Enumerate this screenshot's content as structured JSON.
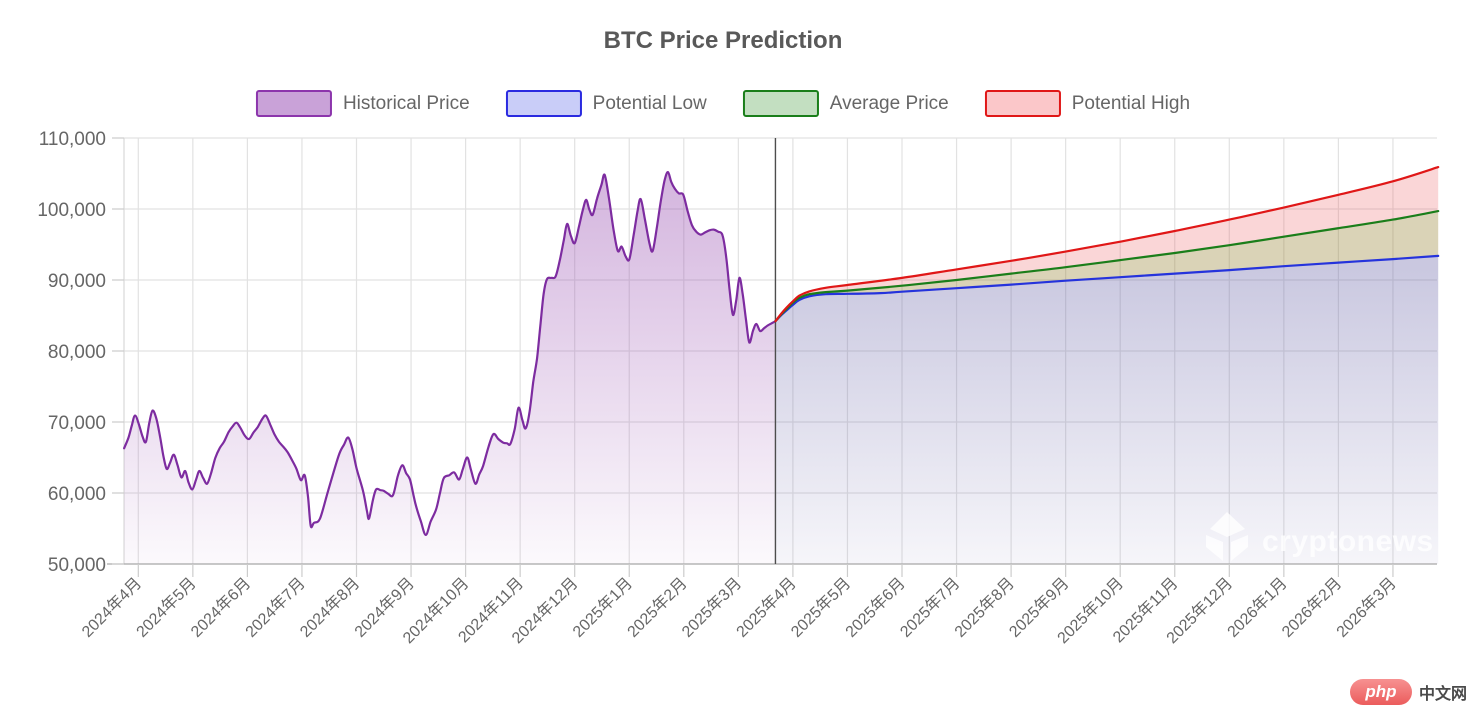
{
  "title": "BTC Price Prediction",
  "watermark": {
    "text": "cryptonews"
  },
  "badge": {
    "brand": "php",
    "suffix": "中文网"
  },
  "legend": [
    {
      "id": "historical",
      "label": "Historical Price",
      "fill": "#c9a2d8",
      "border": "#8c35ac"
    },
    {
      "id": "low",
      "label": "Potential Low",
      "fill": "#c9cdf8",
      "border": "#2a2ae0"
    },
    {
      "id": "avg",
      "label": "Average Price",
      "fill": "#c3dfc1",
      "border": "#1a7e1a"
    },
    {
      "id": "high",
      "label": "Potential High",
      "fill": "#fbc7c9",
      "border": "#e01717"
    }
  ],
  "style": {
    "grid_color": "#e2e2e2",
    "plot_border_color": "#d9d9d9",
    "axis_line_color": "#ababab",
    "tick_color": "#cccccc",
    "label_color": "#666666",
    "title_color": "#595959",
    "divider_color": "#4d4d4d",
    "hist_line": "#7d2ca0",
    "low_line": "#2533dc",
    "avg_line": "#1a7e1a",
    "high_line": "#e01717",
    "hist_fill_top": "rgba(150,75,175,0.42)",
    "hist_fill_bottom": "rgba(150,75,175,0.03)",
    "low_fill_top": "rgba(100,95,165,0.34)",
    "low_fill_bottom": "rgba(100,95,165,0.06)",
    "avg_band_fill": "rgba(150,130,50,0.35)",
    "high_band_fill": "rgba(235,90,95,0.25)",
    "watermark_color": "rgba(255,255,255,0.78)"
  },
  "chart_data": {
    "type": "area",
    "title": "BTC Price Prediction",
    "x_unit_note": "points are [month_index, price_usd]; month_index 0 = 2024年4月 tick, 1 per month",
    "prediction_start": {
      "month_index": 11.68,
      "value": 84200
    },
    "x_axis": {
      "tick_labels": [
        "2024年4月",
        "2024年5月",
        "2024年6月",
        "2024年7月",
        "2024年8月",
        "2024年9月",
        "2024年10月",
        "2024年11月",
        "2024年12月",
        "2025年1月",
        "2025年2月",
        "2025年3月",
        "2025年4月",
        "2025年5月",
        "2025年6月",
        "2025年7月",
        "2025年8月",
        "2025年9月",
        "2025年10月",
        "2025年11月",
        "2025年12月",
        "2026年1月",
        "2026年2月",
        "2026年3月"
      ]
    },
    "y_axis": {
      "min": 50000,
      "max": 110000,
      "tick_step": 10000,
      "tick_labels": [
        "50,000",
        "60,000",
        "70,000",
        "80,000",
        "90,000",
        "100,000",
        "110,000"
      ]
    },
    "grid": true,
    "legend_position": "top",
    "series": [
      {
        "id": "historical",
        "name": "Historical Price",
        "color": "#7d2ca0",
        "points": [
          [
            -0.26,
            66300
          ],
          [
            -0.18,
            67800
          ],
          [
            -0.12,
            69500
          ],
          [
            -0.06,
            70900
          ],
          [
            0.01,
            69700
          ],
          [
            0.08,
            67900
          ],
          [
            0.14,
            67200
          ],
          [
            0.2,
            69800
          ],
          [
            0.26,
            71600
          ],
          [
            0.33,
            70500
          ],
          [
            0.4,
            67900
          ],
          [
            0.46,
            65200
          ],
          [
            0.52,
            63400
          ],
          [
            0.58,
            64200
          ],
          [
            0.65,
            65400
          ],
          [
            0.72,
            63900
          ],
          [
            0.79,
            62200
          ],
          [
            0.86,
            63100
          ],
          [
            0.92,
            61500
          ],
          [
            0.99,
            60500
          ],
          [
            1.06,
            61900
          ],
          [
            1.12,
            63100
          ],
          [
            1.19,
            62100
          ],
          [
            1.26,
            61300
          ],
          [
            1.33,
            62700
          ],
          [
            1.41,
            64900
          ],
          [
            1.49,
            66300
          ],
          [
            1.57,
            67200
          ],
          [
            1.65,
            68500
          ],
          [
            1.73,
            69400
          ],
          [
            1.8,
            69900
          ],
          [
            1.87,
            69200
          ],
          [
            1.95,
            68100
          ],
          [
            2.03,
            67600
          ],
          [
            2.11,
            68500
          ],
          [
            2.19,
            69300
          ],
          [
            2.27,
            70400
          ],
          [
            2.34,
            70900
          ],
          [
            2.42,
            69600
          ],
          [
            2.5,
            68200
          ],
          [
            2.58,
            67200
          ],
          [
            2.66,
            66500
          ],
          [
            2.74,
            65700
          ],
          [
            2.82,
            64600
          ],
          [
            2.9,
            63400
          ],
          [
            2.98,
            61800
          ],
          [
            3.05,
            62500
          ],
          [
            3.11,
            59500
          ],
          [
            3.16,
            55400
          ],
          [
            3.22,
            55800
          ],
          [
            3.33,
            56400
          ],
          [
            3.48,
            60300
          ],
          [
            3.67,
            65200
          ],
          [
            3.77,
            66800
          ],
          [
            3.85,
            67800
          ],
          [
            3.93,
            66000
          ],
          [
            4.0,
            63500
          ],
          [
            4.12,
            60300
          ],
          [
            4.19,
            57500
          ],
          [
            4.23,
            56400
          ],
          [
            4.3,
            59000
          ],
          [
            4.36,
            60500
          ],
          [
            4.44,
            60400
          ],
          [
            4.5,
            60300
          ],
          [
            4.58,
            59900
          ],
          [
            4.67,
            59700
          ],
          [
            4.76,
            62500
          ],
          [
            4.84,
            63900
          ],
          [
            4.91,
            62800
          ],
          [
            4.98,
            61900
          ],
          [
            5.05,
            59500
          ],
          [
            5.09,
            58200
          ],
          [
            5.18,
            56000
          ],
          [
            5.27,
            54100
          ],
          [
            5.36,
            56000
          ],
          [
            5.46,
            57700
          ],
          [
            5.53,
            60000
          ],
          [
            5.6,
            62100
          ],
          [
            5.7,
            62500
          ],
          [
            5.79,
            62900
          ],
          [
            5.88,
            61900
          ],
          [
            5.95,
            63400
          ],
          [
            6.03,
            65000
          ],
          [
            6.1,
            63200
          ],
          [
            6.18,
            61300
          ],
          [
            6.25,
            62600
          ],
          [
            6.32,
            63800
          ],
          [
            6.42,
            66500
          ],
          [
            6.51,
            68300
          ],
          [
            6.6,
            67600
          ],
          [
            6.69,
            67100
          ],
          [
            6.76,
            67000
          ],
          [
            6.82,
            66900
          ],
          [
            6.9,
            69000
          ],
          [
            6.97,
            72000
          ],
          [
            7.04,
            70300
          ],
          [
            7.1,
            69100
          ],
          [
            7.17,
            71300
          ],
          [
            7.24,
            75600
          ],
          [
            7.31,
            79000
          ],
          [
            7.37,
            83500
          ],
          [
            7.43,
            88000
          ],
          [
            7.49,
            90100
          ],
          [
            7.57,
            90300
          ],
          [
            7.65,
            90500
          ],
          [
            7.73,
            92900
          ],
          [
            7.8,
            95600
          ],
          [
            7.86,
            97900
          ],
          [
            7.93,
            96200
          ],
          [
            8.0,
            95200
          ],
          [
            8.08,
            97600
          ],
          [
            8.15,
            99900
          ],
          [
            8.21,
            101300
          ],
          [
            8.27,
            99900
          ],
          [
            8.33,
            99200
          ],
          [
            8.41,
            101500
          ],
          [
            8.49,
            103400
          ],
          [
            8.55,
            104800
          ],
          [
            8.63,
            101400
          ],
          [
            8.71,
            97200
          ],
          [
            8.79,
            94100
          ],
          [
            8.86,
            94700
          ],
          [
            8.93,
            93400
          ],
          [
            9.0,
            92900
          ],
          [
            9.08,
            96300
          ],
          [
            9.15,
            99600
          ],
          [
            9.21,
            101400
          ],
          [
            9.29,
            98400
          ],
          [
            9.37,
            95200
          ],
          [
            9.43,
            94100
          ],
          [
            9.51,
            97600
          ],
          [
            9.58,
            101200
          ],
          [
            9.65,
            104100
          ],
          [
            9.71,
            105200
          ],
          [
            9.77,
            103800
          ],
          [
            9.84,
            102800
          ],
          [
            9.91,
            102200
          ],
          [
            9.99,
            102000
          ],
          [
            10.07,
            99700
          ],
          [
            10.15,
            97700
          ],
          [
            10.23,
            96800
          ],
          [
            10.31,
            96400
          ],
          [
            10.39,
            96700
          ],
          [
            10.47,
            97000
          ],
          [
            10.55,
            97100
          ],
          [
            10.63,
            96800
          ],
          [
            10.71,
            96300
          ],
          [
            10.78,
            93100
          ],
          [
            10.84,
            88600
          ],
          [
            10.9,
            85100
          ],
          [
            10.96,
            87100
          ],
          [
            11.02,
            90300
          ],
          [
            11.08,
            88000
          ],
          [
            11.14,
            84400
          ],
          [
            11.2,
            81200
          ],
          [
            11.27,
            82900
          ],
          [
            11.33,
            83800
          ],
          [
            11.4,
            82800
          ],
          [
            11.47,
            83200
          ],
          [
            11.54,
            83600
          ],
          [
            11.61,
            83900
          ],
          [
            11.68,
            84200
          ]
        ]
      },
      {
        "id": "low",
        "name": "Potential Low",
        "color": "#2533dc",
        "points": [
          [
            11.68,
            84200
          ],
          [
            11.78,
            85000
          ],
          [
            11.88,
            85700
          ],
          [
            12.0,
            86500
          ],
          [
            12.12,
            87200
          ],
          [
            12.3,
            87700
          ],
          [
            12.6,
            88000
          ],
          [
            13.0,
            88050
          ],
          [
            13.6,
            88150
          ],
          [
            14.0,
            88350
          ],
          [
            15.0,
            88850
          ],
          [
            16.0,
            89350
          ],
          [
            17.0,
            89900
          ],
          [
            18.0,
            90400
          ],
          [
            19.0,
            90900
          ],
          [
            20.0,
            91400
          ],
          [
            21.0,
            91950
          ],
          [
            22.0,
            92450
          ],
          [
            23.0,
            92950
          ],
          [
            23.83,
            93400
          ]
        ]
      },
      {
        "id": "avg",
        "name": "Average Price",
        "color": "#1a7e1a",
        "points": [
          [
            11.68,
            84200
          ],
          [
            11.78,
            85100
          ],
          [
            11.88,
            85900
          ],
          [
            12.0,
            86800
          ],
          [
            12.12,
            87500
          ],
          [
            12.3,
            88000
          ],
          [
            12.6,
            88300
          ],
          [
            13.0,
            88500
          ],
          [
            14.0,
            89200
          ],
          [
            15.0,
            90000
          ],
          [
            16.0,
            90900
          ],
          [
            17.0,
            91800
          ],
          [
            18.0,
            92800
          ],
          [
            19.0,
            93800
          ],
          [
            20.0,
            94900
          ],
          [
            21.0,
            96100
          ],
          [
            22.0,
            97300
          ],
          [
            23.0,
            98500
          ],
          [
            23.83,
            99700
          ]
        ]
      },
      {
        "id": "high",
        "name": "Potential High",
        "color": "#e01717",
        "points": [
          [
            11.68,
            84200
          ],
          [
            11.78,
            85200
          ],
          [
            11.88,
            86100
          ],
          [
            12.0,
            87000
          ],
          [
            12.12,
            87800
          ],
          [
            12.3,
            88400
          ],
          [
            12.6,
            88900
          ],
          [
            13.0,
            89300
          ],
          [
            14.0,
            90300
          ],
          [
            15.0,
            91500
          ],
          [
            16.0,
            92700
          ],
          [
            17.0,
            94000
          ],
          [
            18.0,
            95400
          ],
          [
            19.0,
            96900
          ],
          [
            20.0,
            98500
          ],
          [
            21.0,
            100200
          ],
          [
            22.0,
            102000
          ],
          [
            23.0,
            103900
          ],
          [
            23.83,
            105900
          ]
        ]
      }
    ]
  }
}
